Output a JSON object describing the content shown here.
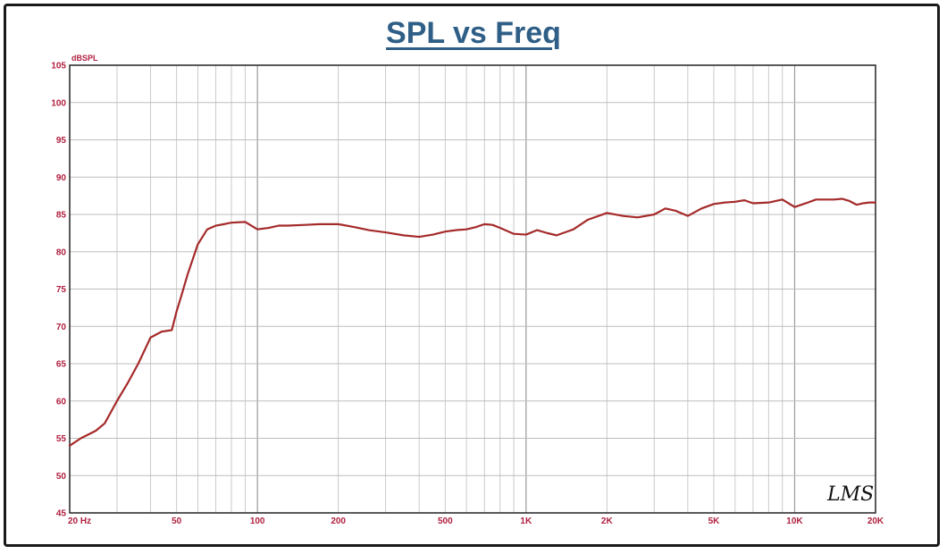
{
  "chart_data": {
    "type": "line",
    "title": "SPL vs Freq",
    "ylabel": "dBSPL",
    "xlabel": "",
    "xscale": "log",
    "xlim": [
      20,
      20000
    ],
    "ylim": [
      45,
      105
    ],
    "grid": true,
    "watermark": "LMS",
    "line_color": "#a52a2a",
    "y_ticks": [
      {
        "value": 45,
        "label": "45"
      },
      {
        "value": 50,
        "label": "50"
      },
      {
        "value": 55,
        "label": "55"
      },
      {
        "value": 60,
        "label": "60"
      },
      {
        "value": 65,
        "label": "65"
      },
      {
        "value": 70,
        "label": "70"
      },
      {
        "value": 75,
        "label": "75"
      },
      {
        "value": 80,
        "label": "80"
      },
      {
        "value": 85,
        "label": "85"
      },
      {
        "value": 90,
        "label": "90"
      },
      {
        "value": 95,
        "label": "95"
      },
      {
        "value": 100,
        "label": "100"
      },
      {
        "value": 105,
        "label": "105"
      }
    ],
    "x_ticks": [
      {
        "value": 20,
        "label": "20  Hz"
      },
      {
        "value": 50,
        "label": "50"
      },
      {
        "value": 100,
        "label": "100"
      },
      {
        "value": 200,
        "label": "200"
      },
      {
        "value": 500,
        "label": "500"
      },
      {
        "value": 1000,
        "label": "1K"
      },
      {
        "value": 2000,
        "label": "2K"
      },
      {
        "value": 5000,
        "label": "5K"
      },
      {
        "value": 10000,
        "label": "10K"
      },
      {
        "value": 20000,
        "label": "20K"
      }
    ],
    "series": [
      {
        "x": [
          20,
          22,
          25,
          27,
          30,
          33,
          36,
          40,
          44,
          48,
          50,
          52,
          55,
          60,
          65,
          70,
          75,
          80,
          90,
          100,
          110,
          120,
          130,
          150,
          170,
          200,
          230,
          260,
          300,
          350,
          400,
          450,
          500,
          550,
          600,
          650,
          700,
          750,
          800,
          900,
          1000,
          1100,
          1200,
          1300,
          1500,
          1700,
          2000,
          2300,
          2600,
          3000,
          3300,
          3600,
          4000,
          4500,
          5000,
          5500,
          6000,
          6500,
          7000,
          8000,
          9000,
          10000,
          11000,
          12000,
          13000,
          14000,
          15000,
          16000,
          17000,
          18000,
          19000,
          20000
        ],
        "y": [
          54.0,
          55.0,
          56.0,
          57.0,
          60.0,
          62.5,
          65.0,
          68.5,
          69.3,
          69.5,
          72.0,
          74.0,
          77.0,
          81.0,
          83.0,
          83.5,
          83.7,
          83.9,
          84.0,
          83.0,
          83.2,
          83.5,
          83.5,
          83.6,
          83.7,
          83.7,
          83.3,
          82.9,
          82.6,
          82.2,
          82.0,
          82.3,
          82.7,
          82.9,
          83.0,
          83.3,
          83.7,
          83.6,
          83.2,
          82.4,
          82.3,
          82.9,
          82.5,
          82.2,
          83.0,
          84.3,
          85.2,
          84.8,
          84.6,
          85.0,
          85.8,
          85.5,
          84.8,
          85.8,
          86.4,
          86.6,
          86.7,
          86.9,
          86.5,
          86.6,
          87.0,
          86.0,
          86.5,
          87.0,
          87.0,
          87.0,
          87.1,
          86.8,
          86.3,
          86.5,
          86.6,
          86.6
        ]
      }
    ]
  }
}
